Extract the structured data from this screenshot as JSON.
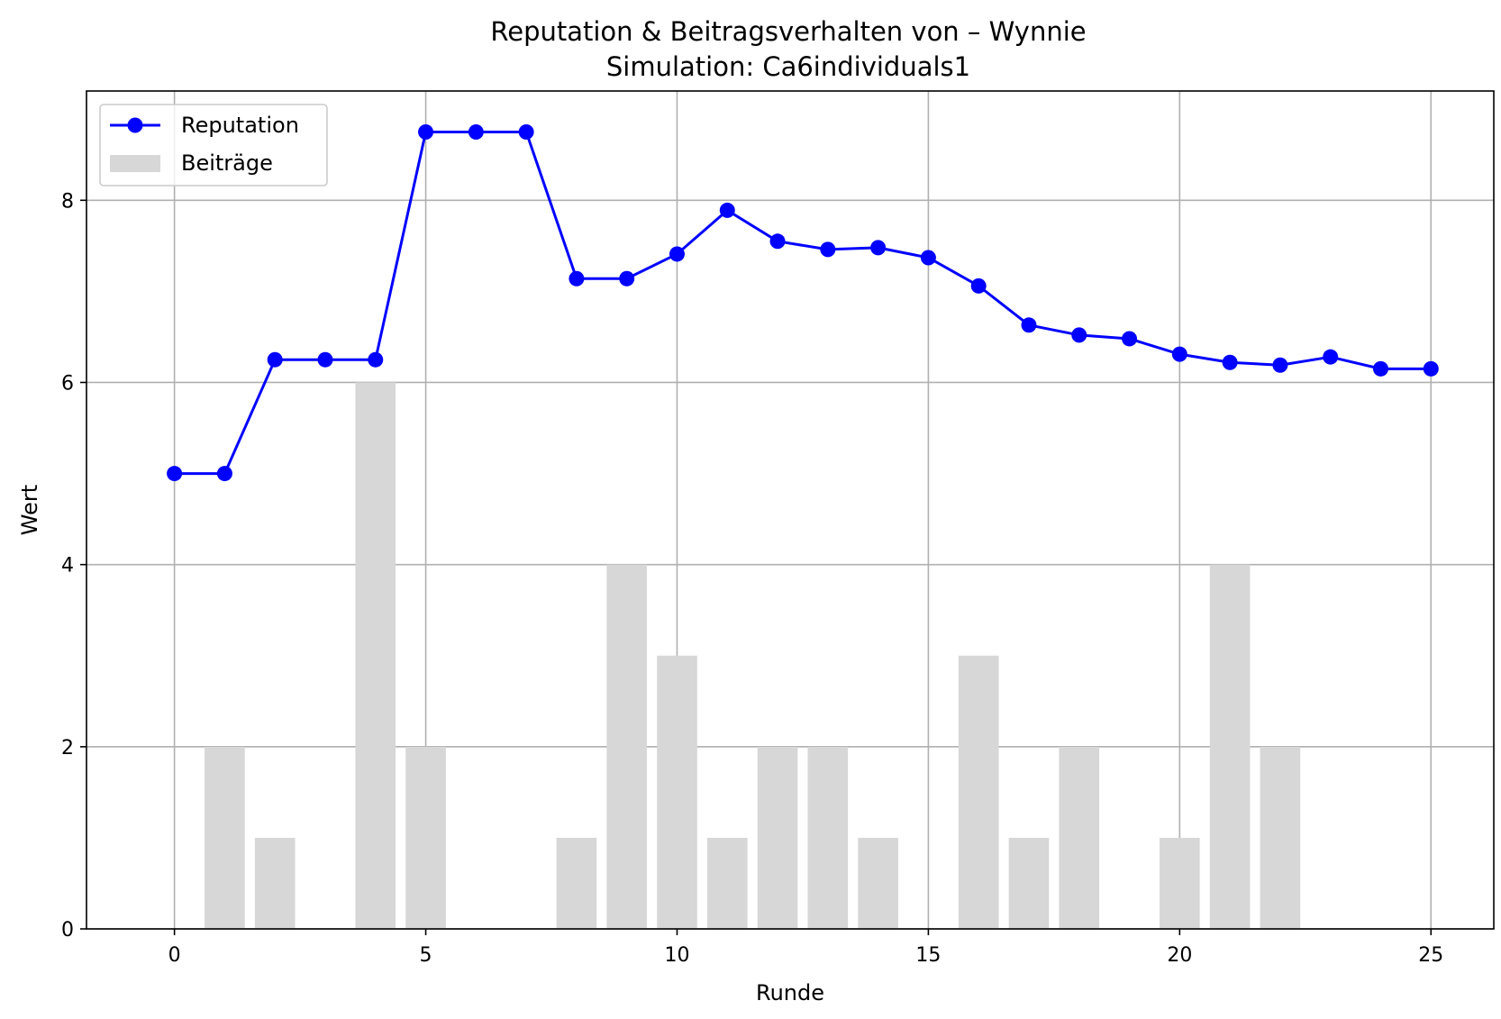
{
  "chart_data": {
    "type": "line",
    "title": "Reputation & Beitragsverhalten von – Wynnie",
    "subtitle": "Simulation: Ca6individuals1",
    "xlabel": "Runde",
    "ylabel": "Wert",
    "xlim": [
      -1.75,
      26.25
    ],
    "ylim": [
      0,
      9.2
    ],
    "xticks": [
      0,
      5,
      10,
      15,
      20,
      25
    ],
    "yticks": [
      0,
      2,
      4,
      6,
      8
    ],
    "grid": true,
    "legend_position": "top-left",
    "x": [
      0,
      1,
      2,
      3,
      4,
      5,
      6,
      7,
      8,
      9,
      10,
      11,
      12,
      13,
      14,
      15,
      16,
      17,
      18,
      19,
      20,
      21,
      22,
      23,
      24,
      25
    ],
    "series": [
      {
        "name": "Reputation",
        "type": "line",
        "color": "#0000ff",
        "marker": "circle",
        "values": [
          5.0,
          5.0,
          6.25,
          6.25,
          6.25,
          8.75,
          8.75,
          8.75,
          7.14,
          7.14,
          7.41,
          7.89,
          7.55,
          7.46,
          7.48,
          7.37,
          7.06,
          6.63,
          6.52,
          6.48,
          6.31,
          6.22,
          6.19,
          6.28,
          6.15,
          6.15
        ]
      },
      {
        "name": "Beiträge",
        "type": "bar",
        "color": "#d7d7d7",
        "values": [
          0,
          2,
          1,
          0,
          6,
          2,
          0,
          0,
          1,
          4,
          3,
          1,
          2,
          2,
          1,
          0,
          3,
          1,
          2,
          0,
          1,
          4,
          2,
          0,
          0,
          0
        ]
      }
    ]
  }
}
